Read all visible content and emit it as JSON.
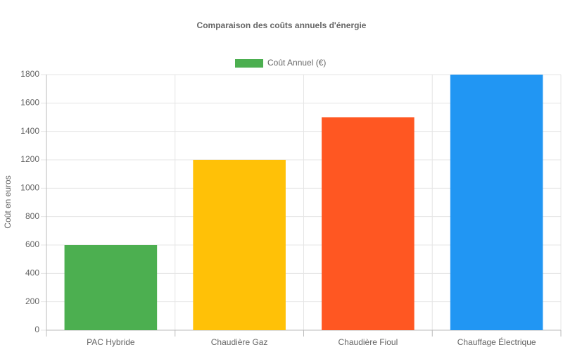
{
  "chart_data": {
    "type": "bar",
    "title": "Comparaison des coûts annuels d'énergie",
    "y_label": "Coût en euros",
    "categories": [
      "PAC Hybride",
      "Chaudière Gaz",
      "Chaudière Fioul",
      "Chauffage Électrique"
    ],
    "series": [
      {
        "name": "Coût Annuel (€)",
        "colors": [
          "#4caf50",
          "#ffc107",
          "#ff5722",
          "#2196f3"
        ],
        "values": [
          600,
          1200,
          1500,
          1800
        ]
      }
    ],
    "ylim": [
      0,
      1800
    ],
    "yticks": [
      0,
      200,
      400,
      600,
      800,
      1000,
      1200,
      1400,
      1600,
      1800
    ],
    "grid": true,
    "legend": "top"
  }
}
